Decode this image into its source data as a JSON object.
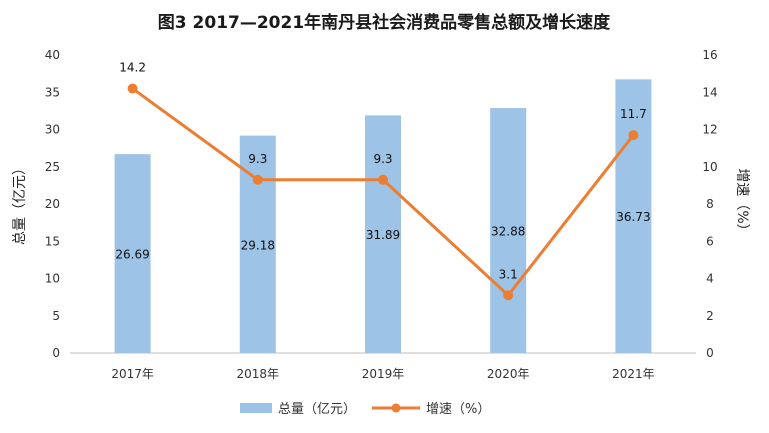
{
  "chart_data": {
    "type": "bar+line",
    "title": "图3  2017—2021年南丹县社会消费品零售总额及增长速度",
    "categories": [
      "2017年",
      "2018年",
      "2019年",
      "2020年",
      "2021年"
    ],
    "series": [
      {
        "name": "总量（亿元）",
        "type": "bar",
        "axis": "left",
        "values": [
          26.69,
          29.18,
          31.89,
          32.88,
          36.73
        ],
        "labels": [
          "26.69",
          "29.18",
          "31.89",
          "32.88",
          "36.73"
        ],
        "color": "#9DC3E6"
      },
      {
        "name": "增速（%）",
        "type": "line",
        "axis": "right",
        "values": [
          14.2,
          9.3,
          9.3,
          3.1,
          11.7
        ],
        "labels": [
          "14.2",
          "9.3",
          "9.3",
          "3.1",
          "11.7"
        ],
        "color": "#ED7D31"
      }
    ],
    "y_left": {
      "label": "总量（亿元）",
      "ylim": [
        0,
        40
      ],
      "ticks": [
        "0",
        "5",
        "10",
        "15",
        "20",
        "25",
        "30",
        "35",
        "40"
      ]
    },
    "y_right": {
      "label": "增速（%）",
      "ylim": [
        0,
        16
      ],
      "ticks": [
        "0",
        "2",
        "4",
        "6",
        "8",
        "10",
        "12",
        "14",
        "16"
      ]
    },
    "grid": false,
    "legend": "bottom"
  }
}
